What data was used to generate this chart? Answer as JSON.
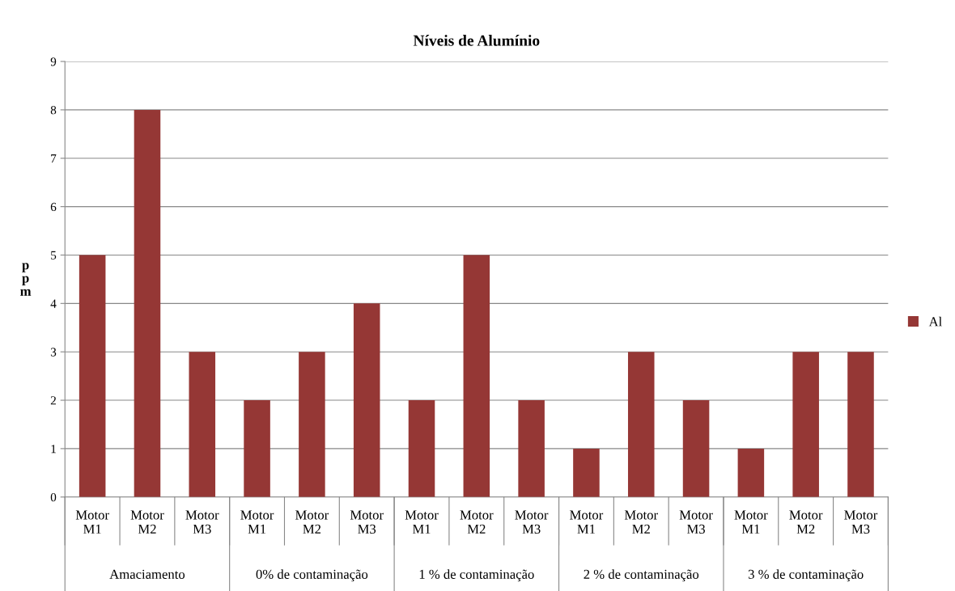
{
  "chart_data": {
    "type": "bar",
    "title": "Níveis de Alumínio",
    "ylabel": "ppm",
    "categories": [
      "Motor M1",
      "Motor M2",
      "Motor M3",
      "Motor M1",
      "Motor M2",
      "Motor M3",
      "Motor M1",
      "Motor M2",
      "Motor M3",
      "Motor M1",
      "Motor M2",
      "Motor M3",
      "Motor M1",
      "Motor M2",
      "Motor M3"
    ],
    "series": [
      {
        "name": "Al",
        "color": "#953735",
        "values": [
          5,
          8,
          3,
          2,
          3,
          4,
          2,
          5,
          2,
          1,
          3,
          2,
          1,
          3,
          3
        ]
      }
    ],
    "annotations": [
      "Amaciamento",
      "0% de contaminação",
      "1 % de contaminação",
      "2 % de contaminação",
      "3 % de contaminação"
    ],
    "ylim": [
      0,
      9
    ],
    "yticks": [
      0,
      1,
      2,
      3,
      4,
      5,
      6,
      7,
      8,
      9
    ],
    "grid": "y",
    "legend": "right"
  }
}
